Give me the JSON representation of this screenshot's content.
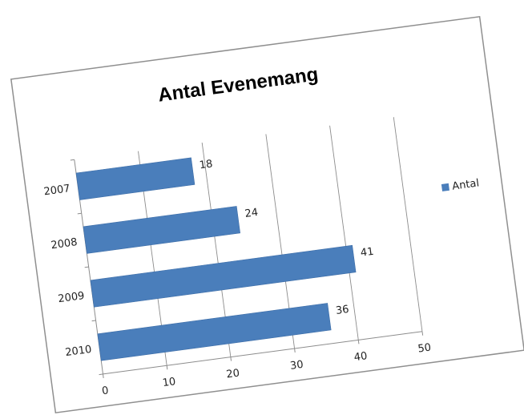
{
  "chart_data": {
    "type": "bar",
    "orientation": "horizontal",
    "title": "Antal Evenemang",
    "categories": [
      "2007",
      "2008",
      "2009",
      "2010"
    ],
    "series": [
      {
        "name": "Antal",
        "values": [
          18,
          24,
          41,
          36
        ]
      }
    ],
    "xlim": [
      0,
      50
    ],
    "x_ticks": [
      0,
      10,
      20,
      30,
      40,
      50
    ],
    "x_tick_labels": [
      "0",
      "10",
      "20",
      "30",
      "40",
      "50"
    ],
    "data_labels": [
      "18",
      "24",
      "41",
      "36"
    ],
    "grid": "vertical",
    "legend_position": "right",
    "bar_color": "#4a7ebb"
  }
}
